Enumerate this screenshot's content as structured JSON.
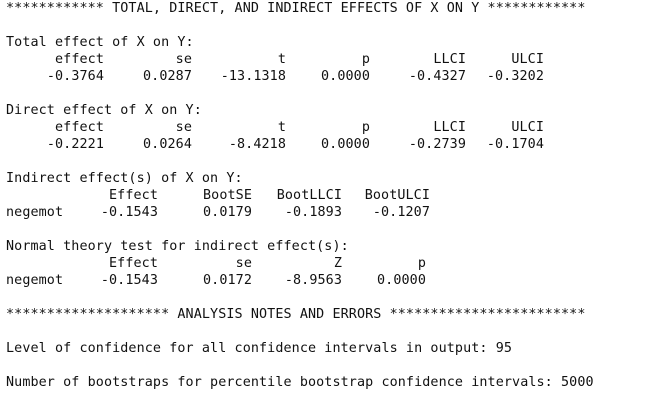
{
  "header": {
    "effects_banner": "************ TOTAL, DIRECT, AND INDIRECT EFFECTS OF X ON Y ************"
  },
  "total_effect": {
    "title": "Total effect of X on Y:",
    "columns": [
      "effect",
      "se",
      "t",
      "p",
      "LLCI",
      "ULCI"
    ],
    "values": [
      "-0.3764",
      "0.0287",
      "-13.1318",
      "0.0000",
      "-0.4327",
      "-0.3202"
    ]
  },
  "direct_effect": {
    "title": "Direct effect of X on Y:",
    "columns": [
      "effect",
      "se",
      "t",
      "p",
      "LLCI",
      "ULCI"
    ],
    "values": [
      "-0.2221",
      "0.0264",
      "-8.4218",
      "0.0000",
      "-0.2739",
      "-0.1704"
    ]
  },
  "indirect_effect": {
    "title": "Indirect effect(s) of X on Y:",
    "columns": [
      "Effect",
      "BootSE",
      "BootLLCI",
      "BootULCI"
    ],
    "row_label": "negemot",
    "values": [
      "-0.1543",
      "0.0179",
      "-0.1893",
      "-0.1207"
    ]
  },
  "normal_theory": {
    "title": "Normal theory test for indirect effect(s):",
    "columns": [
      "Effect",
      "se",
      "Z",
      "p"
    ],
    "row_label": "negemot",
    "values": [
      "-0.1543",
      "0.0172",
      "-8.9563",
      "0.0000"
    ]
  },
  "notes": {
    "banner": "******************** ANALYSIS NOTES AND ERRORS ************************",
    "confidence_line": "Level of confidence for all confidence intervals in output: 95",
    "bootstrap_line": "Number of bootstraps for percentile bootstrap confidence intervals: 5000"
  }
}
